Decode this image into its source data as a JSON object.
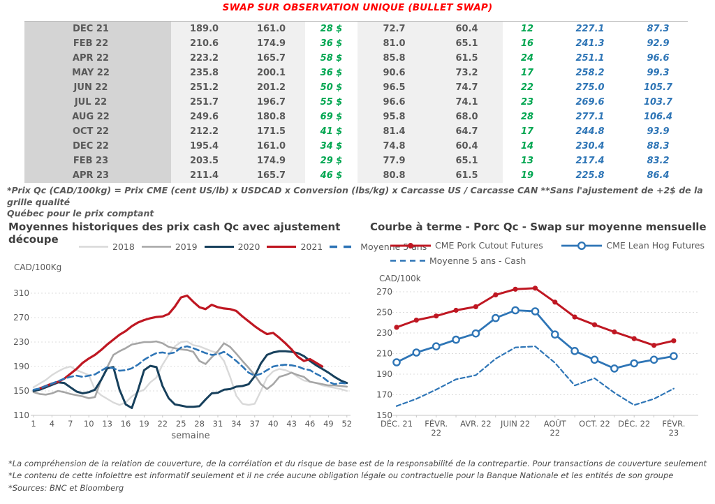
{
  "title": "SWAP SUR OBSERVATION UNIQUE (BULLET SWAP)",
  "colors": {
    "title_red": "#ff0000",
    "table_green": "#00a650",
    "table_blue": "#2e75b6",
    "series_2018": "#d9d9d9",
    "series_2019": "#a6a6a6",
    "series_2020": "#17405c",
    "series_2021": "#bf1722",
    "series_moyenne": "#2e75b6"
  },
  "table": {
    "rows": [
      [
        "DEC 21",
        "189.0",
        "161.0",
        "28 $",
        "72.7",
        "60.4",
        "12",
        "227.1",
        "87.3"
      ],
      [
        "FEB 22",
        "210.6",
        "174.9",
        "36 $",
        "81.0",
        "65.1",
        "16",
        "241.3",
        "92.9"
      ],
      [
        "APR 22",
        "223.2",
        "165.7",
        "58 $",
        "85.8",
        "61.5",
        "24",
        "251.1",
        "96.6"
      ],
      [
        "MAY 22",
        "235.8",
        "200.1",
        "36 $",
        "90.6",
        "73.2",
        "17",
        "258.2",
        "99.3"
      ],
      [
        "JUN 22",
        "251.2",
        "201.2",
        "50 $",
        "96.5",
        "74.7",
        "22",
        "275.0",
        "105.7"
      ],
      [
        "JUL 22",
        "251.7",
        "196.7",
        "55 $",
        "96.6",
        "74.1",
        "23",
        "269.6",
        "103.7"
      ],
      [
        "AUG 22",
        "249.6",
        "180.8",
        "69 $",
        "95.8",
        "68.0",
        "28",
        "277.1",
        "106.4"
      ],
      [
        "OCT 22",
        "212.2",
        "171.5",
        "41 $",
        "81.4",
        "64.7",
        "17",
        "244.8",
        "93.9"
      ],
      [
        "DEC 22",
        "195.4",
        "161.0",
        "34 $",
        "74.8",
        "60.4",
        "14",
        "230.4",
        "88.3"
      ],
      [
        "FEB 23",
        "203.5",
        "174.9",
        "29 $",
        "77.9",
        "65.1",
        "13",
        "217.4",
        "83.2"
      ],
      [
        "APR 23",
        "211.4",
        "165.7",
        "46 $",
        "80.8",
        "61.5",
        "19",
        "225.8",
        "86.4"
      ]
    ]
  },
  "table_footnote": "*Prix Qc (CAD/100kg) = Prix CME (cent US/lb) x USDCAD x Conversion (lbs/kg) x Carcasse US / Carcasse CAN **Sans l'ajustement de +2$ de la grille qualité\nQuébec pour le prix comptant",
  "chart_data": [
    {
      "type": "line",
      "title": "Moyennes historiques des prix cash Qc avec ajustement découpe",
      "ylabel": "CAD/100Kg",
      "xlabel": "semaine",
      "ylim": [
        110,
        310
      ],
      "yticks": [
        110,
        150,
        190,
        230,
        270,
        310
      ],
      "xtick_weeks": [
        1,
        4,
        7,
        10,
        13,
        16,
        19,
        22,
        25,
        28,
        31,
        34,
        37,
        40,
        43,
        46,
        49,
        52
      ],
      "grid": "dashed-horizontal",
      "legend_position": "top",
      "series": [
        {
          "name": "2018",
          "color": "#d9d9d9",
          "width": 2.4,
          "values": [
            156,
            162,
            168,
            176,
            182,
            187,
            190,
            184,
            180,
            176,
            152,
            143,
            137,
            131,
            127,
            131,
            141,
            148,
            152,
            164,
            172,
            193,
            209,
            223,
            230,
            231,
            225,
            223,
            219,
            215,
            212,
            199,
            173,
            142,
            129,
            127,
            129,
            150,
            172,
            182,
            186,
            184,
            180,
            173,
            167,
            165,
            163,
            159,
            157,
            155,
            153,
            150
          ]
        },
        {
          "name": "2019",
          "color": "#a6a6a6",
          "width": 2.6,
          "values": [
            148,
            145,
            144,
            146,
            150,
            148,
            145,
            143,
            141,
            138,
            140,
            168,
            189,
            209,
            215,
            220,
            226,
            228,
            230,
            230,
            231,
            228,
            222,
            220,
            218,
            217,
            214,
            199,
            194,
            205,
            215,
            228,
            222,
            211,
            199,
            188,
            176,
            161,
            153,
            161,
            173,
            176,
            180,
            176,
            173,
            165,
            163,
            161,
            159,
            159,
            158,
            157
          ]
        },
        {
          "name": "2020",
          "color": "#17405c",
          "width": 3,
          "values": [
            150,
            152,
            156,
            160,
            164,
            163,
            156,
            149,
            146,
            148,
            152,
            168,
            187,
            189,
            152,
            128,
            122,
            151,
            184,
            191,
            189,
            158,
            138,
            128,
            126,
            124,
            124,
            125,
            136,
            146,
            147,
            152,
            153,
            157,
            158,
            161,
            174,
            195,
            209,
            213,
            215,
            215,
            214,
            212,
            207,
            199,
            192,
            186,
            180,
            173,
            167,
            163
          ]
        },
        {
          "name": "2021",
          "color": "#bf1722",
          "width": 3.2,
          "values": [
            null,
            154,
            158,
            162,
            165,
            170,
            178,
            186,
            196,
            203,
            209,
            217,
            226,
            234,
            242,
            248,
            256,
            262,
            266,
            269,
            271,
            272,
            276,
            288,
            303,
            306,
            296,
            287,
            284,
            291,
            287,
            285,
            284,
            281,
            272,
            264,
            256,
            249,
            243,
            245,
            237,
            228,
            218,
            206,
            199,
            202,
            196,
            190,
            null,
            null,
            null,
            null
          ]
        },
        {
          "name": "Moyenne 5 ans",
          "color": "#2e75b6",
          "width": 2.6,
          "dash": "8,5",
          "values": [
            152,
            154,
            158,
            162,
            166,
            170,
            173,
            175,
            173,
            175,
            177,
            183,
            189,
            187,
            183,
            184,
            187,
            193,
            201,
            207,
            212,
            213,
            211,
            213,
            221,
            223,
            220,
            216,
            212,
            209,
            210,
            214,
            207,
            199,
            190,
            180,
            175,
            178,
            184,
            190,
            192,
            193,
            192,
            190,
            186,
            184,
            178,
            173,
            165,
            161,
            163,
            162
          ]
        }
      ]
    },
    {
      "type": "line",
      "title": "Courbe à terme - Porc Qc - Swap sur moyenne mensuelle",
      "ylabel": "CAD/100k",
      "xlabel": "",
      "ylim": [
        150,
        270
      ],
      "yticks": [
        150,
        170,
        190,
        210,
        230,
        250,
        270
      ],
      "xtick_labels": [
        "DÉC. 21",
        "FÉVR.\n22",
        "AVR. 22",
        "JUIN 22",
        "AOÛT\n22",
        "OCT. 22",
        "DÉC. 22",
        "FÉVR.\n23"
      ],
      "xtick_indices": [
        0,
        2,
        4,
        6,
        8,
        10,
        12,
        14
      ],
      "grid": "dashed-horizontal",
      "legend_position": "top",
      "series": [
        {
          "name": "CME Pork Cutout Futures",
          "color": "#bf1722",
          "width": 3,
          "marker": "filled",
          "values": [
            235.5,
            242.5,
            246.5,
            252,
            255.5,
            267,
            272.5,
            273.5,
            260,
            245.5,
            238,
            231,
            224.5,
            218,
            222.5
          ]
        },
        {
          "name": "CME Lean Hog Futures",
          "color": "#2e75b6",
          "width": 2.8,
          "marker": "open",
          "values": [
            201.5,
            211,
            217,
            223.5,
            229.5,
            244.5,
            252,
            251,
            228.5,
            212.5,
            204,
            195.5,
            200.5,
            204,
            207.5
          ]
        },
        {
          "name": "Moyenne 5 ans - Cash",
          "color": "#2e75b6",
          "width": 2.2,
          "dash": "6,4",
          "values": [
            159,
            166,
            175,
            185,
            189,
            205,
            216,
            217,
            201,
            179,
            186,
            172,
            160,
            166,
            176
          ]
        }
      ]
    }
  ],
  "footnotes": [
    "*La compréhension de la relation de couverture, de la corrélation et du risque de base est de la responsabilité de la contrepartie. Pour transactions de couverture seulement",
    "*Le contenu de cette infolettre est informatif seulement et il ne crée aucune obligation légale ou contractuelle pour la Banque Nationale et les entités de son groupe",
    "*Sources: BNC et Bloomberg"
  ]
}
